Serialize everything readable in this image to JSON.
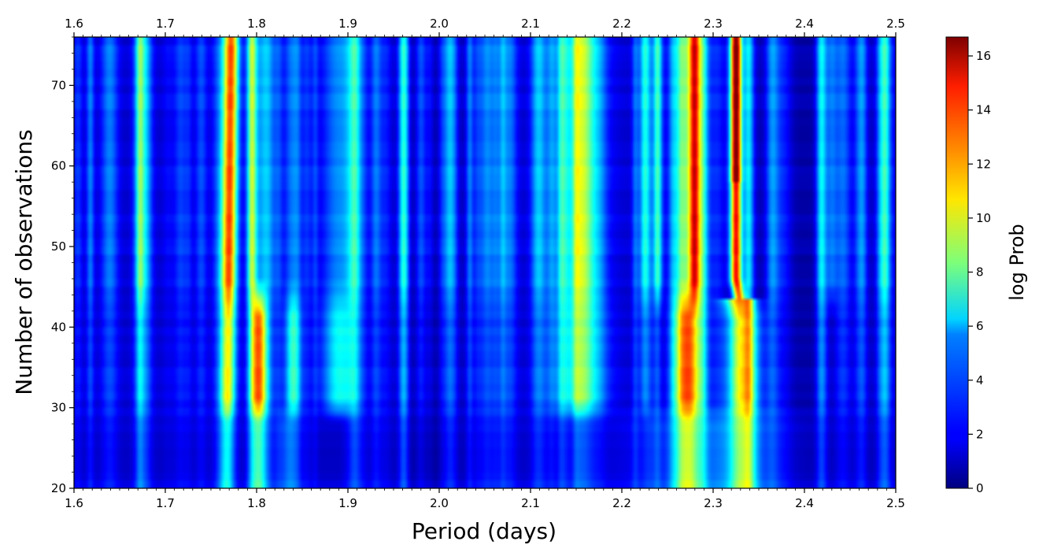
{
  "chart_data": {
    "type": "heatmap",
    "title": "",
    "xlabel": "Period (days)",
    "ylabel": "Number of observations",
    "colorbar_label": "log Prob",
    "colormap": "jet",
    "xlim": [
      1.6,
      2.5
    ],
    "ylim": [
      20,
      76
    ],
    "xticks": [
      "1.6",
      "1.7",
      "1.8",
      "1.9",
      "2.0",
      "2.1",
      "2.2",
      "2.3",
      "2.4",
      "2.5"
    ],
    "yticks": [
      "20",
      "30",
      "40",
      "50",
      "60",
      "70"
    ],
    "colorbar_range": [
      0,
      16.7
    ],
    "colorbar_ticks": [
      "0",
      "2",
      "4",
      "6",
      "8",
      "10",
      "12",
      "14",
      "16"
    ],
    "top_axis_mirrors_bottom": true,
    "ridges": [
      {
        "period": 1.77,
        "peak_log_prob": 14
      },
      {
        "period": 1.795,
        "peak_log_prob": 10
      },
      {
        "period": 1.8,
        "peak_log_prob": 12
      },
      {
        "period": 2.275,
        "peak_log_prob": 13
      },
      {
        "period": 2.28,
        "peak_log_prob": 11
      },
      {
        "period": 2.325,
        "peak_log_prob": 16.5
      }
    ],
    "observation_jumps": [
      25,
      30,
      44
    ]
  }
}
